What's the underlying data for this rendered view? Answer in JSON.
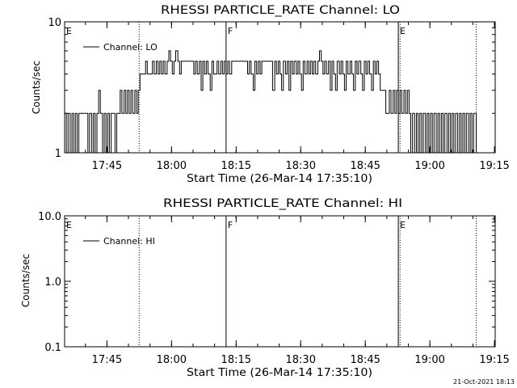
{
  "footer": {
    "timestamp": "21-Oct-2021 18:13"
  },
  "chart_data": [
    {
      "type": "line",
      "title": "RHESSI PARTICLE_RATE Channel: LO",
      "xlabel": "Start Time (26-Mar-14 17:35:10)",
      "ylabel": "Counts/sec",
      "y_scale": "log",
      "ylim": [
        1,
        10
      ],
      "y_ticks": [
        {
          "value": 1,
          "label": "1"
        },
        {
          "value": 10,
          "label": "10"
        }
      ],
      "x_range_minutes_after_start": [
        0,
        100.0
      ],
      "x_ticks": [
        {
          "value": 9.83,
          "label": "17:45"
        },
        {
          "value": 24.83,
          "label": "18:00"
        },
        {
          "value": 39.83,
          "label": "18:15"
        },
        {
          "value": 54.83,
          "label": "18:30"
        },
        {
          "value": 69.83,
          "label": "18:45"
        },
        {
          "value": 84.83,
          "label": "19:00"
        },
        {
          "value": 99.83,
          "label": "19:15"
        }
      ],
      "legend": {
        "placement": "top-left",
        "entries": [
          "Channel: LO"
        ]
      },
      "markers": [
        {
          "label": "E",
          "style": "dotted",
          "x": 0.0
        },
        {
          "label": "",
          "style": "dotted",
          "x": 17.3
        },
        {
          "label": "F",
          "style": "solid",
          "x": 37.5
        },
        {
          "label": "E",
          "style": "solid",
          "x": 77.5
        },
        {
          "label": "",
          "style": "dotted",
          "x": 77.9
        },
        {
          "label": "",
          "style": "dotted",
          "x": 95.6
        }
      ],
      "series": [
        {
          "name": "Channel: LO",
          "points": [
            [
              0.0,
              2
            ],
            [
              0.4,
              1
            ],
            [
              0.8,
              2
            ],
            [
              1.3,
              1
            ],
            [
              1.7,
              2
            ],
            [
              2.1,
              1
            ],
            [
              2.5,
              2
            ],
            [
              2.9,
              1
            ],
            [
              3.3,
              2
            ],
            [
              5.0,
              2
            ],
            [
              5.4,
              1
            ],
            [
              5.8,
              2
            ],
            [
              6.3,
              1
            ],
            [
              6.7,
              2
            ],
            [
              7.1,
              1
            ],
            [
              7.5,
              2
            ],
            [
              7.9,
              3
            ],
            [
              8.3,
              2
            ],
            [
              8.8,
              1
            ],
            [
              9.2,
              2
            ],
            [
              9.6,
              1
            ],
            [
              10.0,
              2
            ],
            [
              10.4,
              1
            ],
            [
              10.8,
              2
            ],
            [
              11.3,
              2
            ],
            [
              11.7,
              1
            ],
            [
              12.1,
              2
            ],
            [
              12.5,
              2
            ],
            [
              12.9,
              3
            ],
            [
              13.3,
              2
            ],
            [
              13.8,
              3
            ],
            [
              14.2,
              2
            ],
            [
              14.6,
              3
            ],
            [
              15.0,
              2
            ],
            [
              15.4,
              3
            ],
            [
              15.8,
              2
            ],
            [
              16.3,
              3
            ],
            [
              16.7,
              2
            ],
            [
              17.1,
              3
            ],
            [
              17.5,
              4
            ],
            [
              18.3,
              4
            ],
            [
              18.8,
              5
            ],
            [
              19.2,
              4
            ],
            [
              20.0,
              4
            ],
            [
              20.4,
              5
            ],
            [
              20.8,
              4
            ],
            [
              21.3,
              5
            ],
            [
              21.7,
              4
            ],
            [
              22.1,
              5
            ],
            [
              22.5,
              4
            ],
            [
              22.9,
              5
            ],
            [
              23.3,
              4
            ],
            [
              23.8,
              5
            ],
            [
              24.2,
              6
            ],
            [
              24.6,
              5
            ],
            [
              25.0,
              4
            ],
            [
              25.4,
              5
            ],
            [
              25.8,
              6
            ],
            [
              26.3,
              5
            ],
            [
              26.7,
              4
            ],
            [
              27.1,
              5
            ],
            [
              30.0,
              4
            ],
            [
              30.4,
              5
            ],
            [
              30.8,
              4
            ],
            [
              31.3,
              5
            ],
            [
              31.7,
              3
            ],
            [
              32.1,
              5
            ],
            [
              32.5,
              4
            ],
            [
              32.9,
              5
            ],
            [
              33.3,
              4
            ],
            [
              33.8,
              3
            ],
            [
              34.2,
              5
            ],
            [
              34.6,
              4
            ],
            [
              35.0,
              4
            ],
            [
              35.4,
              5
            ],
            [
              35.8,
              4
            ],
            [
              36.3,
              5
            ],
            [
              36.7,
              4
            ],
            [
              37.1,
              5
            ],
            [
              37.5,
              4
            ],
            [
              37.9,
              5
            ],
            [
              38.3,
              4
            ],
            [
              38.8,
              5
            ],
            [
              42.0,
              5
            ],
            [
              42.5,
              4
            ],
            [
              42.9,
              5
            ],
            [
              43.3,
              4
            ],
            [
              43.8,
              3
            ],
            [
              44.2,
              5
            ],
            [
              44.6,
              4
            ],
            [
              45.0,
              5
            ],
            [
              45.4,
              4
            ],
            [
              45.8,
              5
            ],
            [
              48.0,
              5
            ],
            [
              48.3,
              3
            ],
            [
              48.8,
              5
            ],
            [
              49.2,
              4
            ],
            [
              49.6,
              5
            ],
            [
              50.0,
              4
            ],
            [
              50.4,
              3
            ],
            [
              50.8,
              5
            ],
            [
              51.3,
              4
            ],
            [
              51.7,
              5
            ],
            [
              52.1,
              3
            ],
            [
              52.5,
              5
            ],
            [
              52.9,
              4
            ],
            [
              53.3,
              5
            ],
            [
              53.8,
              4
            ],
            [
              54.2,
              5
            ],
            [
              54.6,
              4
            ],
            [
              55.0,
              3
            ],
            [
              55.4,
              5
            ],
            [
              55.8,
              4
            ],
            [
              56.3,
              5
            ],
            [
              56.7,
              4
            ],
            [
              57.1,
              5
            ],
            [
              57.5,
              4
            ],
            [
              57.9,
              5
            ],
            [
              58.3,
              4
            ],
            [
              58.8,
              5
            ],
            [
              59.2,
              6
            ],
            [
              59.6,
              5
            ],
            [
              60.0,
              4
            ],
            [
              60.4,
              5
            ],
            [
              60.8,
              4
            ],
            [
              61.3,
              5
            ],
            [
              61.7,
              3
            ],
            [
              62.1,
              5
            ],
            [
              62.5,
              4
            ],
            [
              62.9,
              3
            ],
            [
              63.3,
              5
            ],
            [
              63.8,
              4
            ],
            [
              64.2,
              5
            ],
            [
              64.6,
              4
            ],
            [
              65.0,
              3
            ],
            [
              65.4,
              5
            ],
            [
              65.8,
              4
            ],
            [
              66.3,
              5
            ],
            [
              66.7,
              4
            ],
            [
              67.1,
              3
            ],
            [
              67.5,
              5
            ],
            [
              67.9,
              4
            ],
            [
              68.3,
              5
            ],
            [
              68.8,
              4
            ],
            [
              69.2,
              3
            ],
            [
              69.6,
              5
            ],
            [
              70.0,
              4
            ],
            [
              70.4,
              5
            ],
            [
              70.8,
              4
            ],
            [
              71.3,
              3
            ],
            [
              71.7,
              5
            ],
            [
              72.1,
              4
            ],
            [
              72.5,
              5
            ],
            [
              72.9,
              4
            ],
            [
              73.3,
              3
            ],
            [
              73.8,
              3
            ],
            [
              74.2,
              3
            ],
            [
              74.6,
              2
            ],
            [
              75.0,
              2
            ],
            [
              75.4,
              3
            ],
            [
              75.8,
              2
            ],
            [
              76.3,
              3
            ],
            [
              76.7,
              2
            ],
            [
              77.1,
              3
            ],
            [
              77.5,
              2
            ],
            [
              77.9,
              3
            ],
            [
              78.3,
              2
            ],
            [
              78.8,
              3
            ],
            [
              79.2,
              2
            ],
            [
              79.6,
              3
            ],
            [
              80.0,
              2
            ],
            [
              80.4,
              1
            ],
            [
              80.8,
              2
            ],
            [
              81.3,
              1
            ],
            [
              81.7,
              2
            ],
            [
              82.1,
              1
            ],
            [
              82.5,
              2
            ],
            [
              82.9,
              1
            ],
            [
              83.3,
              2
            ],
            [
              83.8,
              1
            ],
            [
              84.2,
              2
            ],
            [
              84.6,
              1
            ],
            [
              85.0,
              2
            ],
            [
              85.4,
              1
            ],
            [
              85.8,
              2
            ],
            [
              86.3,
              1
            ],
            [
              86.7,
              2
            ],
            [
              87.1,
              1
            ],
            [
              87.5,
              2
            ],
            [
              87.9,
              1
            ],
            [
              88.3,
              2
            ],
            [
              88.8,
              1
            ],
            [
              89.2,
              2
            ],
            [
              89.6,
              1
            ],
            [
              90.0,
              2
            ],
            [
              90.4,
              1
            ],
            [
              90.8,
              2
            ],
            [
              91.3,
              1
            ],
            [
              91.7,
              2
            ],
            [
              92.1,
              1
            ],
            [
              92.5,
              2
            ],
            [
              92.9,
              1
            ],
            [
              93.3,
              2
            ],
            [
              93.8,
              1
            ],
            [
              94.2,
              2
            ],
            [
              94.6,
              1
            ],
            [
              95.0,
              2
            ],
            [
              95.6,
              1
            ]
          ]
        }
      ]
    },
    {
      "type": "line",
      "title": "RHESSI PARTICLE_RATE Channel: HI",
      "xlabel": "Start Time (26-Mar-14 17:35:10)",
      "ylabel": "Counts/sec",
      "y_scale": "log",
      "ylim": [
        0.1,
        10
      ],
      "y_ticks": [
        {
          "value": 0.1,
          "label": "0.1"
        },
        {
          "value": 1,
          "label": "1.0"
        },
        {
          "value": 10,
          "label": "10.0"
        }
      ],
      "x_range_minutes_after_start": [
        0,
        100.0
      ],
      "x_ticks": [
        {
          "value": 9.83,
          "label": "17:45"
        },
        {
          "value": 24.83,
          "label": "18:00"
        },
        {
          "value": 39.83,
          "label": "18:15"
        },
        {
          "value": 54.83,
          "label": "18:30"
        },
        {
          "value": 69.83,
          "label": "18:45"
        },
        {
          "value": 84.83,
          "label": "19:00"
        },
        {
          "value": 99.83,
          "label": "19:15"
        }
      ],
      "legend": {
        "placement": "top-left",
        "entries": [
          "Channel: HI"
        ]
      },
      "markers": [
        {
          "label": "E",
          "style": "dotted",
          "x": 0.0
        },
        {
          "label": "",
          "style": "dotted",
          "x": 17.3
        },
        {
          "label": "F",
          "style": "solid",
          "x": 37.5
        },
        {
          "label": "E",
          "style": "solid",
          "x": 77.5
        },
        {
          "label": "",
          "style": "dotted",
          "x": 77.9
        },
        {
          "label": "",
          "style": "dotted",
          "x": 95.6
        }
      ],
      "series": [
        {
          "name": "Channel: HI",
          "points": []
        }
      ]
    }
  ]
}
